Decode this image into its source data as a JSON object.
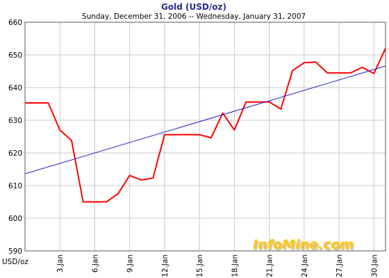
{
  "chart_data": {
    "type": "line",
    "title": "Gold (USD/oz)",
    "subtitle": "Sunday, December 31, 2006  --  Wednesday, January 31, 2007",
    "ylabel": "USD/oz",
    "xlabel": "",
    "ylim": [
      590,
      660
    ],
    "yticks": [
      590,
      600,
      610,
      620,
      630,
      640,
      650,
      660
    ],
    "xlim": [
      "2006-12-31",
      "2007-01-31"
    ],
    "x_tick_labels": [
      "3.Jan",
      "6.Jan",
      "9.Jan",
      "12.Jan",
      "15.Jan",
      "18.Jan",
      "21.Jan",
      "24.Jan",
      "27.Jan",
      "30.Jan"
    ],
    "x_tick_dates": [
      "2007-01-03",
      "2007-01-06",
      "2007-01-09",
      "2007-01-12",
      "2007-01-15",
      "2007-01-18",
      "2007-01-21",
      "2007-01-24",
      "2007-01-27",
      "2007-01-30"
    ],
    "grid": true,
    "series": [
      {
        "color": "#ff0000",
        "x": [
          "2006-12-31",
          "2007-01-01",
          "2007-01-02",
          "2007-01-03",
          "2007-01-04",
          "2007-01-05",
          "2007-01-06",
          "2007-01-07",
          "2007-01-08",
          "2007-01-09",
          "2007-01-10",
          "2007-01-11",
          "2007-01-12",
          "2007-01-13",
          "2007-01-14",
          "2007-01-15",
          "2007-01-16",
          "2007-01-17",
          "2007-01-18",
          "2007-01-19",
          "2007-01-20",
          "2007-01-21",
          "2007-01-22",
          "2007-01-23",
          "2007-01-24",
          "2007-01-25",
          "2007-01-26",
          "2007-01-27",
          "2007-01-28",
          "2007-01-29",
          "2007-01-30",
          "2007-01-31"
        ],
        "values": [
          635.3,
          635.3,
          635.3,
          627.0,
          623.8,
          605.0,
          605.0,
          605.0,
          607.5,
          613.1,
          611.7,
          612.3,
          625.6,
          625.6,
          625.6,
          625.6,
          624.6,
          632.2,
          627.0,
          635.6,
          635.6,
          635.6,
          633.4,
          645.2,
          647.6,
          647.8,
          644.5,
          644.5,
          644.5,
          646.2,
          644.3,
          652.0
        ]
      },
      {
        "type": "trendline",
        "color": "#2222cc",
        "x": [
          "2006-12-31",
          "2007-01-31"
        ],
        "values": [
          613.6,
          646.6
        ]
      }
    ]
  },
  "watermark": {
    "text": "InfoMine.com",
    "color": "#ffc61a"
  },
  "colors": {
    "grid": "#c8c8c8",
    "axis": "#555555",
    "background": "#ffffff"
  }
}
